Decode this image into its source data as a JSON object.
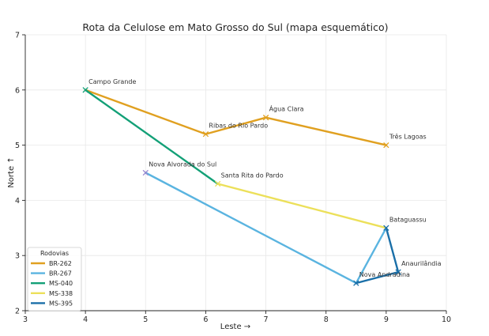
{
  "chart_data": {
    "type": "line",
    "title": "Rota da Celulose em Mato Grosso do Sul (mapa esquemático)",
    "xlabel": "Leste  →",
    "ylabel": "Norte  ↑",
    "xlim": [
      3,
      10
    ],
    "ylim": [
      2,
      7
    ],
    "xticks": [
      "3",
      "4",
      "5",
      "6",
      "7",
      "8",
      "9",
      "10"
    ],
    "yticks": [
      "2",
      "3",
      "4",
      "5",
      "6",
      "7"
    ],
    "grid": true,
    "legend": {
      "title": "Rodovias",
      "placement": "lower-left"
    },
    "points": [
      {
        "name": "Campo Grande",
        "x": 4.0,
        "y": 6.0
      },
      {
        "name": "Ribas do Rio Pardo",
        "x": 6.0,
        "y": 5.2
      },
      {
        "name": "Água Clara",
        "x": 7.0,
        "y": 5.5
      },
      {
        "name": "Três Lagoas",
        "x": 9.0,
        "y": 5.0
      },
      {
        "name": "Nova Alvorada do Sul",
        "x": 5.0,
        "y": 4.5
      },
      {
        "name": "Santa Rita do Pardo",
        "x": 6.2,
        "y": 4.3
      },
      {
        "name": "Bataguassu",
        "x": 9.0,
        "y": 3.5
      },
      {
        "name": "Anaurilândia",
        "x": 9.2,
        "y": 2.7
      },
      {
        "name": "Nova Andradina",
        "x": 8.5,
        "y": 2.5
      }
    ],
    "series": [
      {
        "name": "BR-262",
        "color": "#e0a020",
        "path": [
          [
            4.0,
            6.0
          ],
          [
            6.0,
            5.2
          ],
          [
            7.0,
            5.5
          ],
          [
            9.0,
            5.0
          ]
        ]
      },
      {
        "name": "BR-267",
        "color": "#5ab4e0",
        "path": [
          [
            5.0,
            4.5
          ],
          [
            8.5,
            2.5
          ],
          [
            9.0,
            3.5
          ]
        ]
      },
      {
        "name": "MS-040",
        "color": "#13a077",
        "path": [
          [
            4.0,
            6.0
          ],
          [
            6.2,
            4.3
          ]
        ]
      },
      {
        "name": "MS-338",
        "color": "#ece05a",
        "path": [
          [
            6.2,
            4.3
          ],
          [
            9.0,
            3.5
          ]
        ]
      },
      {
        "name": "MS-395",
        "color": "#1a6fa8",
        "path": [
          [
            8.5,
            2.5
          ],
          [
            9.2,
            2.7
          ],
          [
            9.0,
            3.5
          ]
        ]
      }
    ]
  }
}
